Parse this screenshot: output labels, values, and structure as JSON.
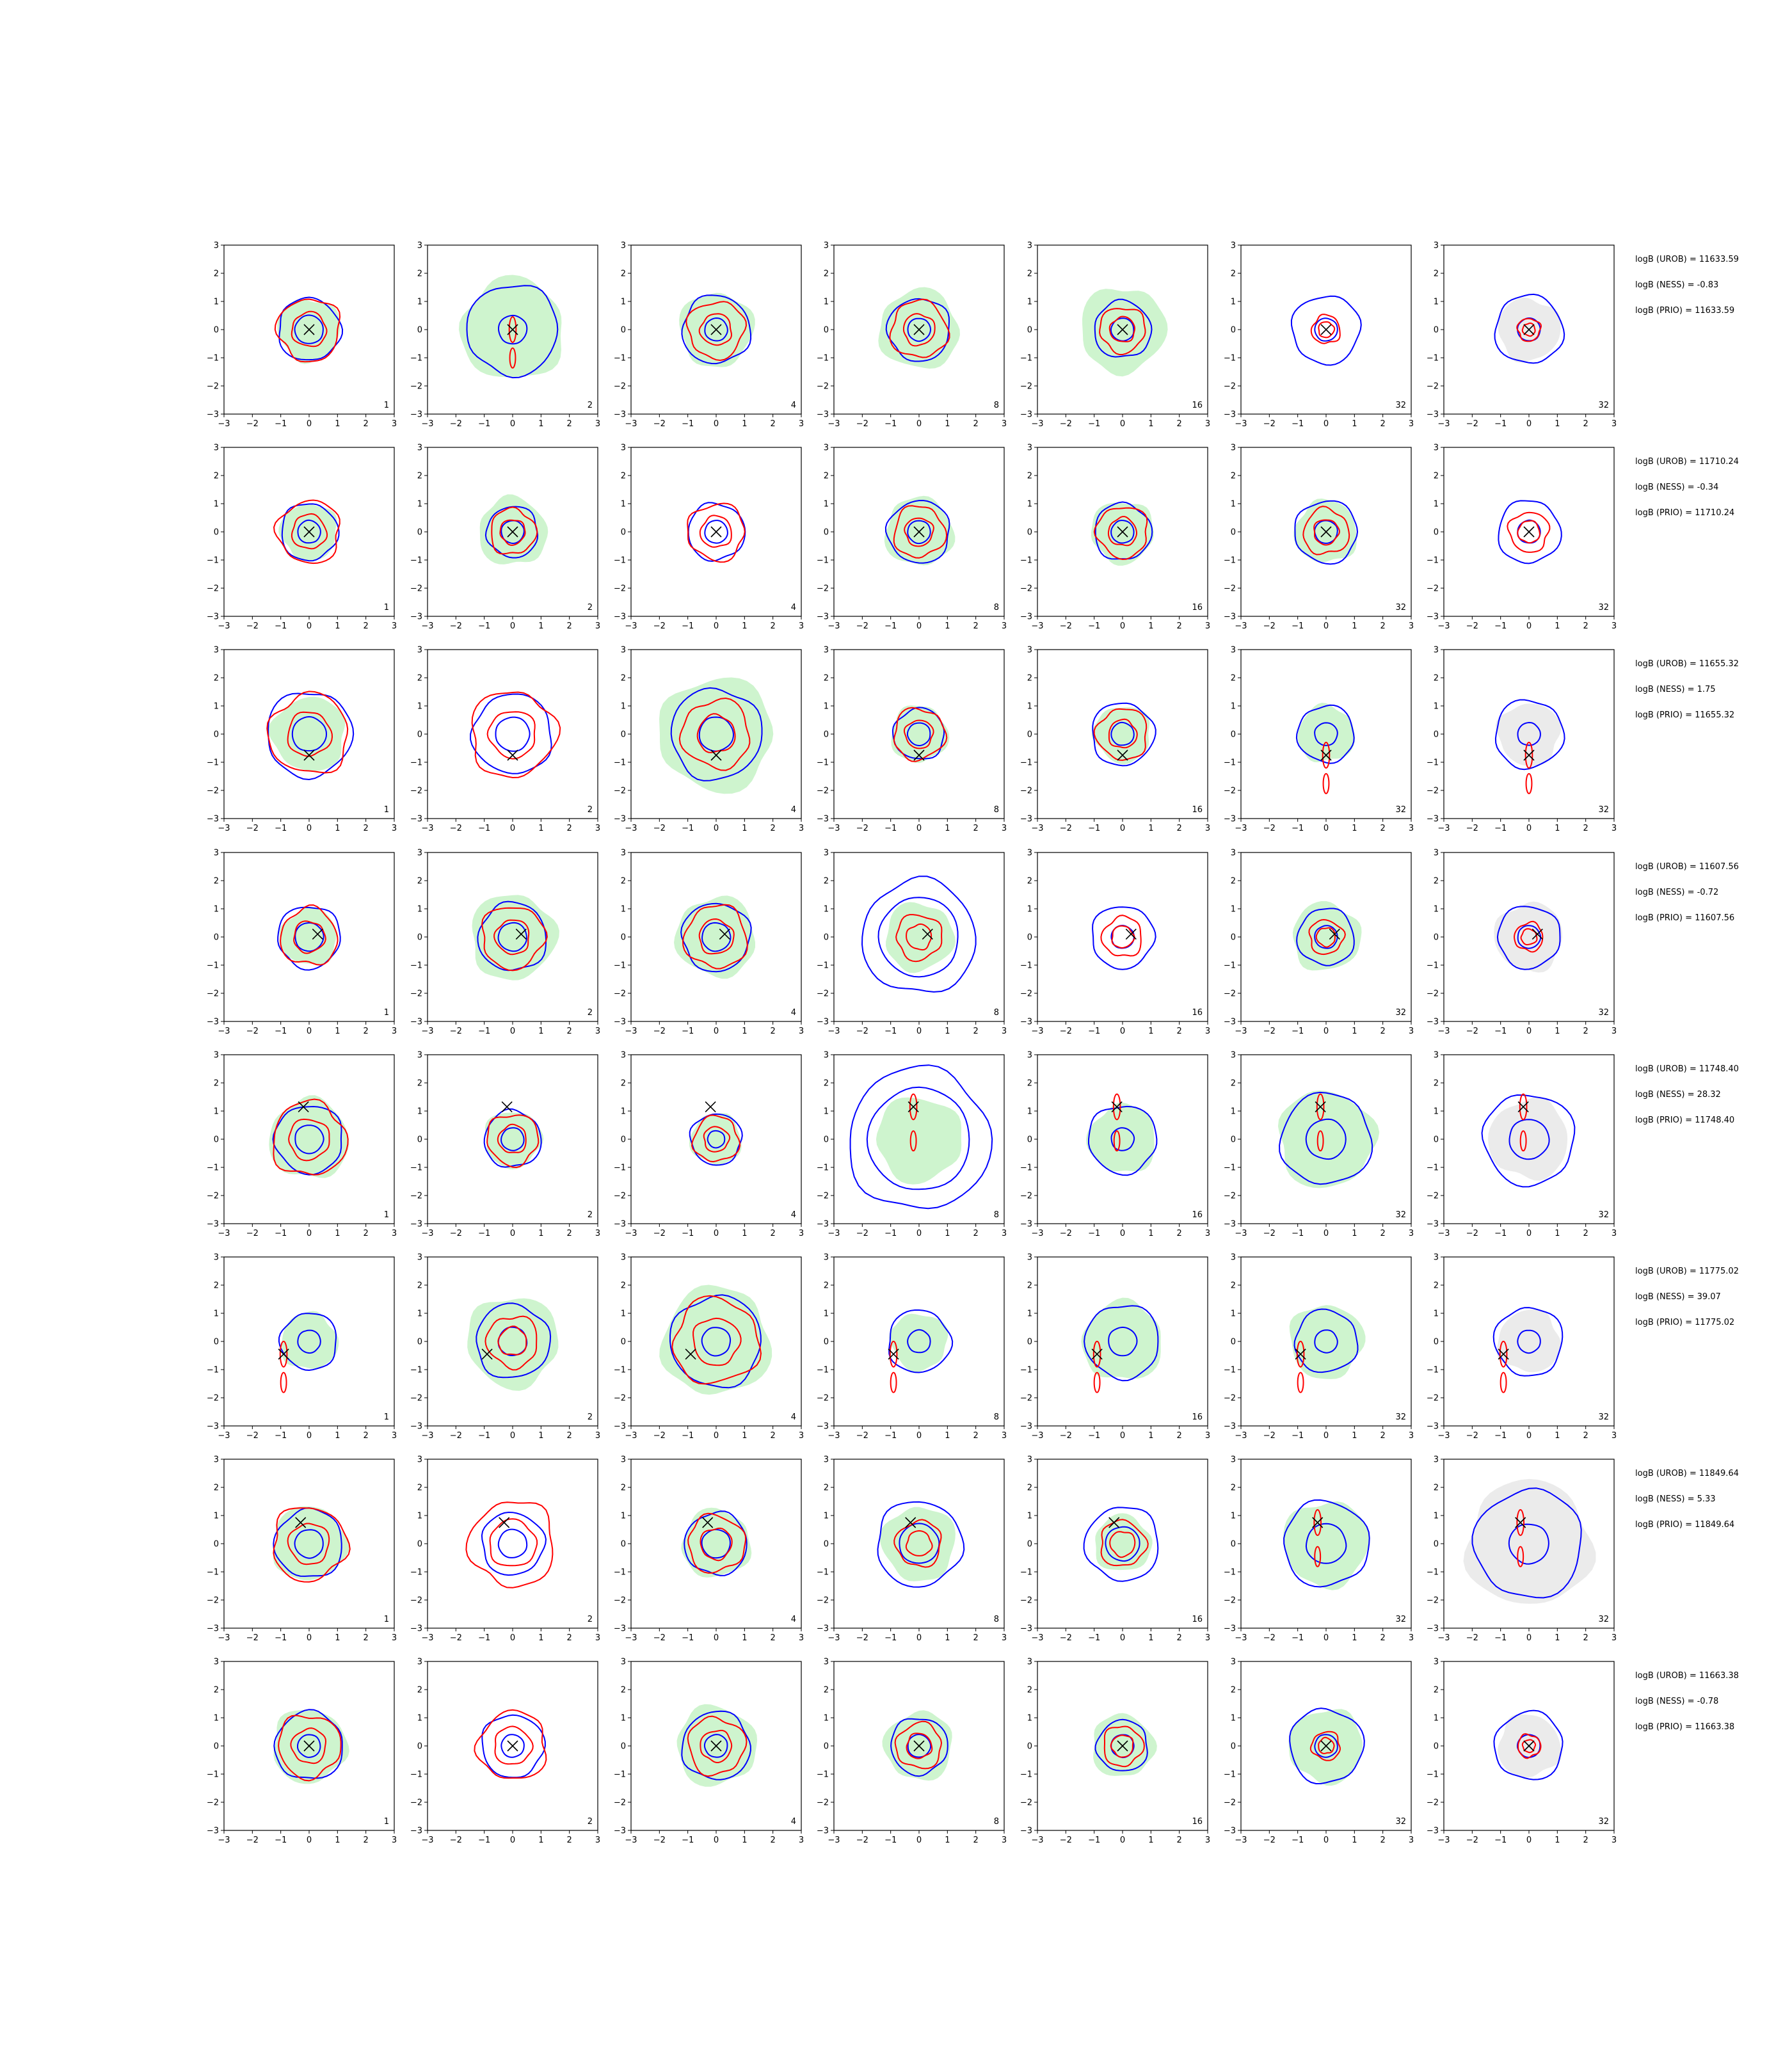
{
  "figure": {
    "rows": 8,
    "cols": 7,
    "colors": {
      "blue": "#0000ff",
      "red": "#ff0000",
      "green_fill": "#b9f0b9",
      "gray_fill": "#d3d3d3",
      "marker": "#000000"
    }
  },
  "chart_data": {
    "type": "scatter",
    "description_free": true,
    "xlim": [
      -3,
      3
    ],
    "ylim": [
      -3,
      3
    ],
    "xticks": [
      "-3",
      "-2",
      "-1",
      "0",
      "1",
      "2",
      "3"
    ],
    "yticks": [
      "-3",
      "-2",
      "-1",
      "0",
      "1",
      "2",
      "3"
    ],
    "column_numbers": [
      "1",
      "2",
      "4",
      "8",
      "16",
      "32",
      "32"
    ],
    "column_fill": [
      "green",
      "green",
      "green",
      "green",
      "green",
      "green",
      "gray"
    ],
    "rows": [
      {
        "marker": [
          0.0,
          0.0
        ],
        "side_text": [
          "logB (UROB) = 11633.59",
          "logB (NESS) = -0.83",
          "logB (PRIO) = 11633.59"
        ]
      },
      {
        "marker": [
          0.0,
          0.0
        ],
        "side_text": [
          "logB (UROB) = 11710.24",
          "logB (NESS) = -0.34",
          "logB (PRIO) = 11710.24"
        ]
      },
      {
        "marker": [
          0.0,
          -0.75
        ],
        "side_text": [
          "logB (UROB) = 11655.32",
          "logB (NESS) = 1.75",
          "logB (PRIO) = 11655.32"
        ]
      },
      {
        "marker": [
          0.3,
          0.1
        ],
        "side_text": [
          "logB (UROB) = 11607.56",
          "logB (NESS) = -0.72",
          "logB (PRIO) = 11607.56"
        ]
      },
      {
        "marker": [
          -0.2,
          1.15
        ],
        "side_text": [
          "logB (UROB) = 11748.40",
          "logB (NESS) = 28.32",
          "logB (PRIO) = 11748.40"
        ]
      },
      {
        "marker": [
          -0.9,
          -0.45
        ],
        "side_text": [
          "logB (UROB) = 11775.02",
          "logB (NESS) = 39.07",
          "logB (PRIO) = 11775.02"
        ]
      },
      {
        "marker": [
          -0.3,
          0.75
        ],
        "side_text": [
          "logB (UROB) = 11849.64",
          "logB (NESS) = 5.33",
          "logB (PRIO) = 11849.64"
        ]
      },
      {
        "marker": [
          0.0,
          0.0
        ],
        "side_text": [
          "logB (UROB) = 11663.38",
          "logB (NESS) = -0.78",
          "logB (PRIO) = 11663.38"
        ]
      }
    ],
    "contours": {
      "blue_outer_radius": [
        [
          1.1,
          1.6,
          1.2,
          1.1,
          1.0,
          1.2,
          1.2
        ],
        [
          1.0,
          0.9,
          1.0,
          1.1,
          1.0,
          1.1,
          1.1
        ],
        [
          1.5,
          1.4,
          1.6,
          0.9,
          1.1,
          1.0,
          1.2
        ],
        [
          1.1,
          1.2,
          1.2,
          2.0,
          1.1,
          1.0,
          1.1
        ],
        [
          1.2,
          1.0,
          0.9,
          2.5,
          1.2,
          1.6,
          1.6
        ],
        [
          1.0,
          1.3,
          1.6,
          1.1,
          1.3,
          1.1,
          1.2
        ],
        [
          1.2,
          1.1,
          1.1,
          1.5,
          1.3,
          1.5,
          1.9
        ],
        [
          1.2,
          1.1,
          1.2,
          1.0,
          0.9,
          1.3,
          1.2
        ]
      ],
      "blue_inner_radius": [
        [
          0.5,
          0.5,
          0.4,
          0.4,
          0.4,
          0.4,
          0.4
        ],
        [
          0.4,
          0.4,
          0.4,
          0.4,
          0.4,
          0.4,
          0.4
        ],
        [
          0.6,
          0.6,
          0.6,
          0.4,
          0.4,
          0.4,
          0.4
        ],
        [
          0.5,
          0.5,
          0.5,
          1.4,
          0.4,
          0.4,
          0.4
        ],
        [
          0.5,
          0.4,
          0.3,
          1.8,
          0.4,
          0.7,
          0.7
        ],
        [
          0.4,
          0.5,
          0.5,
          0.4,
          0.5,
          0.4,
          0.4
        ],
        [
          0.5,
          0.5,
          0.5,
          0.7,
          0.6,
          0.7,
          0.7
        ],
        [
          0.4,
          0.4,
          0.4,
          0.4,
          0.4,
          0.4,
          0.4
        ]
      ],
      "red_outer_radius": [
        [
          1.1,
          0.0,
          1.0,
          1.0,
          0.8,
          0.5,
          0.4
        ],
        [
          1.1,
          0.8,
          1.0,
          0.9,
          0.9,
          0.8,
          0.7
        ],
        [
          1.4,
          1.5,
          1.2,
          0.9,
          0.9,
          0.0,
          0.0
        ],
        [
          1.0,
          1.1,
          1.1,
          0.8,
          0.7,
          0.6,
          0.5
        ],
        [
          1.3,
          0.9,
          0.8,
          0.0,
          0.0,
          0.0,
          0.0
        ],
        [
          0.0,
          0.9,
          1.5,
          0.0,
          0.0,
          0.0,
          0.0
        ],
        [
          1.3,
          1.5,
          1.0,
          0.8,
          0.8,
          0.0,
          0.0
        ],
        [
          1.1,
          1.2,
          1.0,
          0.8,
          0.7,
          0.5,
          0.4
        ]
      ],
      "green_fill_radius": [
        [
          1.1,
          1.8,
          1.3,
          1.4,
          1.5,
          0.0,
          1.1
        ],
        [
          1.0,
          1.2,
          0.0,
          1.2,
          1.1,
          1.1,
          0.0
        ],
        [
          1.3,
          0.0,
          2.0,
          1.0,
          1.0,
          1.0,
          1.1
        ],
        [
          1.0,
          1.5,
          1.4,
          1.2,
          0.0,
          1.2,
          1.2
        ],
        [
          1.4,
          1.0,
          0.9,
          1.5,
          1.2,
          1.7,
          1.4
        ],
        [
          1.0,
          1.6,
          1.9,
          1.0,
          1.4,
          1.3,
          1.1
        ],
        [
          1.3,
          0.0,
          1.2,
          1.3,
          1.0,
          1.5,
          2.2
        ],
        [
          1.3,
          0.0,
          1.4,
          1.2,
          1.1,
          1.3,
          1.1
        ]
      ]
    }
  }
}
